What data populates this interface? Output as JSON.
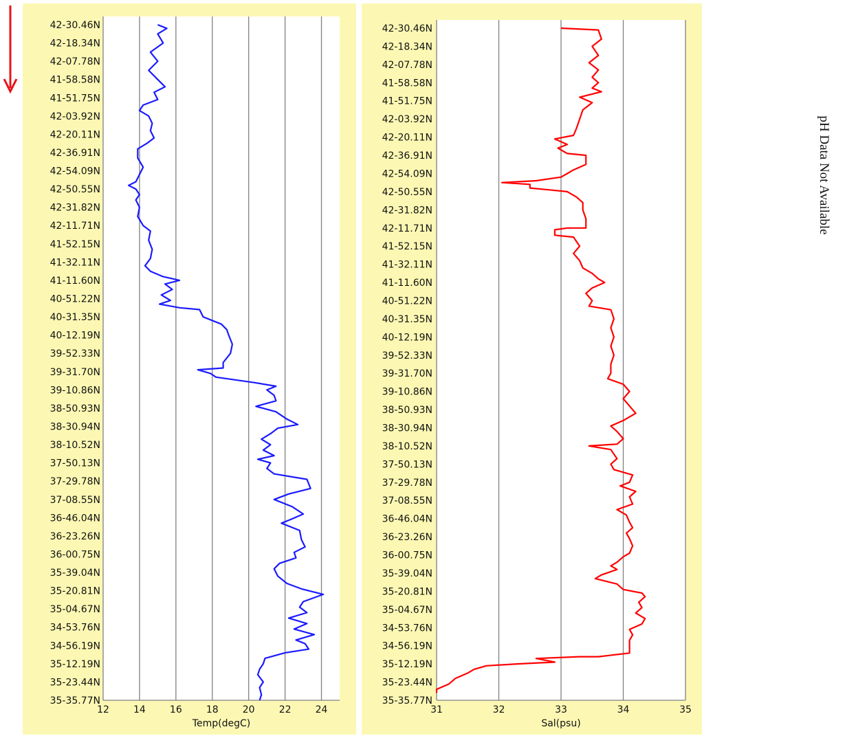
{
  "ph_note": "pH Data Not Available",
  "colors": {
    "panel_bg": "#fcf8b4",
    "grid": "#808080",
    "arrow": "#e8141c"
  },
  "direction_arrow": "down-arrow",
  "latitude_labels": [
    "42-30.46N",
    "42-18.34N",
    "42-07.78N",
    "41-58.58N",
    "41-51.75N",
    "42-03.92N",
    "42-20.11N",
    "42-36.91N",
    "42-54.09N",
    "42-50.55N",
    "42-31.82N",
    "42-11.71N",
    "41-52.15N",
    "41-32.11N",
    "41-11.60N",
    "40-51.22N",
    "40-31.35N",
    "40-12.19N",
    "39-52.33N",
    "39-31.70N",
    "39-10.86N",
    "38-50.93N",
    "38-30.94N",
    "38-10.52N",
    "37-50.13N",
    "37-29.78N",
    "37-08.55N",
    "36-46.04N",
    "36-23.26N",
    "36-00.75N",
    "35-39.04N",
    "35-20.81N",
    "35-04.67N",
    "34-53.76N",
    "34-56.19N",
    "35-12.19N",
    "35-23.44N",
    "35-35.77N"
  ],
  "chart_data": [
    {
      "type": "line",
      "title": "",
      "xlabel": "Temp(degC)",
      "ylabel": "",
      "color": "#1a1aff",
      "xlim": [
        12,
        25
      ],
      "xticks": [
        12,
        14,
        16,
        18,
        20,
        22,
        24
      ],
      "grid": "vertical",
      "points": [
        [
          15,
          0
        ],
        [
          15.5,
          0.2
        ],
        [
          15,
          0.5
        ],
        [
          15.3,
          1
        ],
        [
          14.6,
          1.5
        ],
        [
          15,
          2
        ],
        [
          14.5,
          2.5
        ],
        [
          15,
          3
        ],
        [
          15.4,
          3.4
        ],
        [
          14.8,
          3.7
        ],
        [
          15,
          4.1
        ],
        [
          14.2,
          4.4
        ],
        [
          14,
          4.7
        ],
        [
          14.5,
          5
        ],
        [
          14.7,
          5.4
        ],
        [
          14.6,
          5.8
        ],
        [
          14.8,
          6.2
        ],
        [
          14.4,
          6.5
        ],
        [
          13.9,
          6.8
        ],
        [
          13.9,
          7.3
        ],
        [
          14.2,
          7.8
        ],
        [
          14,
          8.2
        ],
        [
          13.8,
          8.6
        ],
        [
          13.4,
          8.8
        ],
        [
          13.8,
          9.0
        ],
        [
          14,
          9.3
        ],
        [
          13.8,
          9.6
        ],
        [
          14,
          10
        ],
        [
          13.9,
          10.5
        ],
        [
          14.2,
          11
        ],
        [
          14.6,
          11.3
        ],
        [
          14.5,
          11.8
        ],
        [
          14.7,
          12.3
        ],
        [
          14.6,
          12.8
        ],
        [
          14.3,
          13.2
        ],
        [
          14.6,
          13.5
        ],
        [
          15.3,
          13.8
        ],
        [
          16.2,
          14
        ],
        [
          15.4,
          14.2
        ],
        [
          15.8,
          14.5
        ],
        [
          15.2,
          14.8
        ],
        [
          15.7,
          15.1
        ],
        [
          15.1,
          15.3
        ],
        [
          16.2,
          15.5
        ],
        [
          17.3,
          15.6
        ],
        [
          17.5,
          16
        ],
        [
          18.5,
          16.4
        ],
        [
          18.8,
          16.7
        ],
        [
          18.9,
          17.0
        ],
        [
          19.1,
          17.5
        ],
        [
          19.0,
          18.0
        ],
        [
          18.6,
          18.5
        ],
        [
          18.6,
          18.8
        ],
        [
          17.2,
          18.9
        ],
        [
          17.9,
          19.1
        ],
        [
          18.2,
          19.3
        ],
        [
          20.3,
          19.6
        ],
        [
          21.5,
          19.8
        ],
        [
          21.0,
          20
        ],
        [
          21.4,
          20.3
        ],
        [
          21.5,
          20.6
        ],
        [
          20.4,
          20.9
        ],
        [
          21.5,
          21.2
        ],
        [
          22.1,
          21.6
        ],
        [
          22.7,
          21.9
        ],
        [
          21.6,
          22.1
        ],
        [
          21.2,
          22.4
        ],
        [
          20.7,
          22.7
        ],
        [
          21.2,
          23.0
        ],
        [
          20.8,
          23.3
        ],
        [
          21.4,
          23.6
        ],
        [
          20.5,
          23.8
        ],
        [
          21.2,
          24.0
        ],
        [
          21.0,
          24.3
        ],
        [
          21.4,
          24.6
        ],
        [
          23.2,
          24.9
        ],
        [
          23.4,
          25.4
        ],
        [
          22.2,
          25.7
        ],
        [
          21.4,
          26.0
        ],
        [
          22.4,
          26.4
        ],
        [
          23.0,
          26.8
        ],
        [
          22.3,
          27.1
        ],
        [
          21.8,
          27.3
        ],
        [
          22.8,
          27.7
        ],
        [
          22.9,
          28.2
        ],
        [
          23.1,
          28.6
        ],
        [
          22.5,
          28.9
        ],
        [
          22.6,
          29.2
        ],
        [
          21.7,
          29.5
        ],
        [
          21.4,
          29.8
        ],
        [
          21.6,
          30.2
        ],
        [
          22.1,
          30.6
        ],
        [
          22.9,
          30.9
        ],
        [
          24.1,
          31.2
        ],
        [
          23.0,
          31.6
        ],
        [
          22.8,
          31.9
        ],
        [
          23.2,
          32.2
        ],
        [
          22.2,
          32.5
        ],
        [
          23.2,
          32.8
        ],
        [
          22.5,
          33.1
        ],
        [
          23.6,
          33.4
        ],
        [
          22.6,
          33.7
        ],
        [
          23.1,
          33.9
        ],
        [
          23.3,
          34.2
        ],
        [
          22.0,
          34.4
        ],
        [
          20.9,
          34.7
        ],
        [
          20.8,
          35.0
        ],
        [
          20.6,
          35.3
        ],
        [
          20.5,
          35.6
        ],
        [
          20.8,
          36.0
        ],
        [
          20.6,
          36.3
        ],
        [
          20.7,
          36.7
        ],
        [
          20.6,
          37.0
        ]
      ]
    },
    {
      "type": "line",
      "title": "",
      "xlabel": "Sal(psu)",
      "ylabel": "",
      "color": "#ff0000",
      "xlim": [
        31,
        35
      ],
      "xticks": [
        31,
        32,
        33,
        34,
        35
      ],
      "grid": "vertical",
      "points": [
        [
          33.0,
          0
        ],
        [
          33.6,
          0.1
        ],
        [
          33.65,
          0.6
        ],
        [
          33.5,
          1.0
        ],
        [
          33.6,
          1.5
        ],
        [
          33.45,
          1.9
        ],
        [
          33.6,
          2.3
        ],
        [
          33.5,
          2.7
        ],
        [
          33.6,
          3.0
        ],
        [
          33.5,
          3.3
        ],
        [
          33.65,
          3.5
        ],
        [
          33.3,
          3.8
        ],
        [
          33.5,
          4.1
        ],
        [
          33.35,
          4.5
        ],
        [
          33.3,
          5.0
        ],
        [
          33.25,
          5.5
        ],
        [
          33.2,
          5.9
        ],
        [
          32.9,
          6.1
        ],
        [
          33.1,
          6.4
        ],
        [
          32.95,
          6.6
        ],
        [
          33.1,
          6.9
        ],
        [
          33.4,
          7.0
        ],
        [
          33.4,
          7.5
        ],
        [
          33.2,
          7.8
        ],
        [
          33.1,
          8.0
        ],
        [
          33.0,
          8.2
        ],
        [
          32.6,
          8.4
        ],
        [
          32.05,
          8.5
        ],
        [
          32.5,
          8.6
        ],
        [
          32.5,
          8.8
        ],
        [
          32.8,
          8.9
        ],
        [
          33.1,
          9.0
        ],
        [
          33.25,
          9.3
        ],
        [
          33.35,
          9.6
        ],
        [
          33.35,
          10.0
        ],
        [
          33.4,
          10.5
        ],
        [
          33.4,
          11.0
        ],
        [
          33.1,
          11.0
        ],
        [
          32.9,
          11.1
        ],
        [
          32.9,
          11.4
        ],
        [
          33.2,
          11.5
        ],
        [
          33.3,
          12.0
        ],
        [
          33.2,
          12.4
        ],
        [
          33.3,
          12.8
        ],
        [
          33.35,
          13.2
        ],
        [
          33.5,
          13.5
        ],
        [
          33.6,
          13.8
        ],
        [
          33.7,
          14.0
        ],
        [
          33.5,
          14.3
        ],
        [
          33.4,
          14.6
        ],
        [
          33.5,
          15.0
        ],
        [
          33.45,
          15.3
        ],
        [
          33.8,
          15.5
        ],
        [
          33.85,
          16.0
        ],
        [
          33.8,
          16.5
        ],
        [
          33.85,
          17.0
        ],
        [
          33.8,
          17.5
        ],
        [
          33.85,
          18.0
        ],
        [
          33.8,
          18.5
        ],
        [
          33.8,
          19.0
        ],
        [
          33.75,
          19.3
        ],
        [
          34.0,
          19.6
        ],
        [
          34.1,
          20.0
        ],
        [
          34.0,
          20.4
        ],
        [
          34.1,
          20.8
        ],
        [
          34.2,
          21.2
        ],
        [
          34.0,
          21.6
        ],
        [
          33.8,
          21.9
        ],
        [
          33.9,
          22.2
        ],
        [
          34.0,
          22.6
        ],
        [
          33.9,
          22.9
        ],
        [
          33.45,
          23.0
        ],
        [
          33.8,
          23.2
        ],
        [
          33.9,
          23.7
        ],
        [
          33.8,
          24.0
        ],
        [
          33.85,
          24.3
        ],
        [
          34.15,
          24.6
        ],
        [
          34.1,
          25.0
        ],
        [
          33.95,
          25.2
        ],
        [
          34.2,
          25.5
        ],
        [
          34.1,
          25.8
        ],
        [
          34.15,
          26.2
        ],
        [
          33.9,
          26.5
        ],
        [
          34.05,
          26.8
        ],
        [
          34.1,
          27.2
        ],
        [
          34.15,
          27.5
        ],
        [
          34.05,
          27.8
        ],
        [
          34.1,
          28.1
        ],
        [
          34.15,
          28.5
        ],
        [
          34.1,
          28.9
        ],
        [
          34.0,
          29.1
        ],
        [
          33.9,
          29.4
        ],
        [
          33.8,
          29.6
        ],
        [
          33.9,
          29.8
        ],
        [
          33.65,
          30.1
        ],
        [
          33.55,
          30.3
        ],
        [
          33.9,
          30.6
        ],
        [
          34.0,
          30.9
        ],
        [
          34.3,
          31.1
        ],
        [
          34.35,
          31.3
        ],
        [
          34.25,
          31.6
        ],
        [
          34.3,
          31.9
        ],
        [
          34.2,
          32.2
        ],
        [
          34.35,
          32.5
        ],
        [
          34.3,
          32.8
        ],
        [
          34.1,
          33.1
        ],
        [
          34.15,
          33.4
        ],
        [
          34.1,
          33.7
        ],
        [
          34.1,
          34.0
        ],
        [
          34.1,
          34.4
        ],
        [
          33.6,
          34.6
        ],
        [
          33.3,
          34.6
        ],
        [
          32.6,
          34.7
        ],
        [
          32.9,
          34.9
        ],
        [
          32.3,
          35.0
        ],
        [
          31.8,
          35.1
        ],
        [
          31.6,
          35.3
        ],
        [
          31.5,
          35.5
        ],
        [
          31.3,
          35.8
        ],
        [
          31.2,
          36.1
        ],
        [
          31.0,
          36.4
        ],
        [
          31.0,
          36.6
        ]
      ]
    }
  ]
}
